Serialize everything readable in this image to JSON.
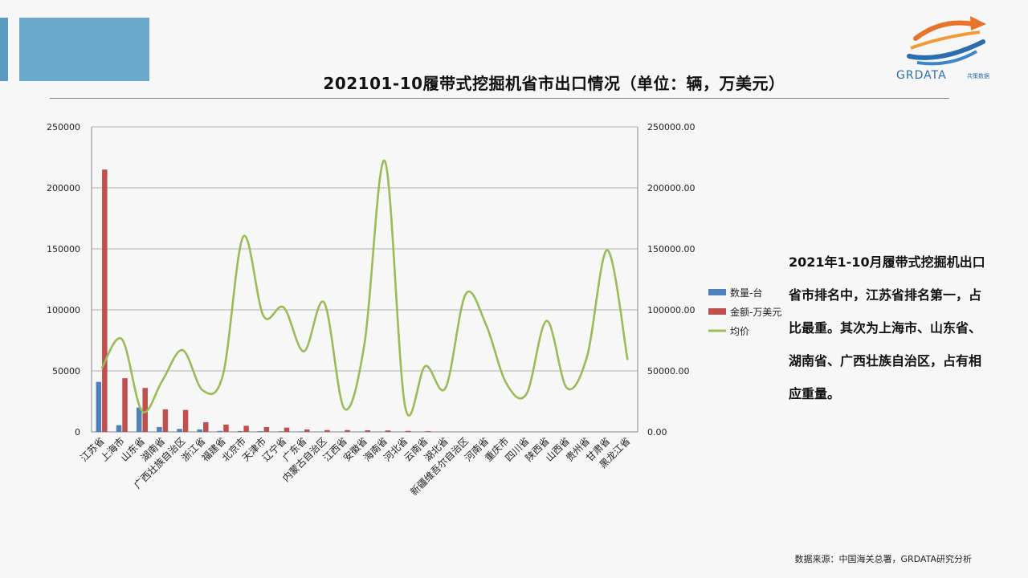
{
  "theme": {
    "accent": "#6aa9cc",
    "accent_dark": "#5b9bc2",
    "bar_qty": "#4f81bd",
    "bar_amt": "#c0504d",
    "line_avg": "#9bbb59",
    "grid": "#9a9a9a"
  },
  "header": {
    "title": "202101-10履带式挖掘机省市出口情况（单位：辆，万美元）"
  },
  "logo": {
    "text": "GRDATA",
    "sub_text": "共策数据",
    "icon": "globe-swoosh-icon"
  },
  "summary": {
    "text": "2021年1-10月履带式挖掘机出口省市排名中，江苏省排名第一，占比最重。其次为上海市、山东省、湖南省、广西壮族自治区，占有相应重量。"
  },
  "footer": {
    "source": "数据来源：中国海关总署，GRDATA研究分析"
  },
  "chart_data": {
    "type": "bar",
    "categories": [
      "江苏省",
      "上海市",
      "山东省",
      "湖南省",
      "广西壮族自治区",
      "浙江省",
      "福建省",
      "北京市",
      "天津市",
      "辽宁省",
      "广东省",
      "内蒙古自治区",
      "江西省",
      "安徽省",
      "海南省",
      "河北省",
      "云南省",
      "湖北省",
      "新疆维吾尔自治区",
      "河南省",
      "重庆市",
      "四川省",
      "陕西省",
      "山西省",
      "贵州省",
      "甘肃省",
      "黑龙江省"
    ],
    "series": [
      {
        "name": "数量-台",
        "axis": "left",
        "type": "bar",
        "values": [
          41000,
          5500,
          20000,
          4000,
          2500,
          2000,
          800,
          700,
          600,
          500,
          400,
          300,
          300,
          250,
          200,
          150,
          120,
          100,
          90,
          80,
          60,
          50,
          40,
          30,
          20,
          10,
          5
        ]
      },
      {
        "name": "金额-万美元",
        "axis": "left",
        "type": "bar",
        "values": [
          215000,
          44000,
          36000,
          18500,
          18000,
          8000,
          6000,
          5000,
          4000,
          3500,
          2000,
          1500,
          1500,
          1300,
          1200,
          800,
          600,
          300,
          250,
          200,
          150,
          100,
          80,
          60,
          40,
          30,
          20
        ]
      },
      {
        "name": "均价",
        "axis": "right",
        "type": "line",
        "values": [
          52000,
          76000,
          17000,
          42000,
          67000,
          34000,
          47000,
          160000,
          95000,
          102000,
          66000,
          106000,
          19000,
          73000,
          222000,
          21000,
          54000,
          36000,
          113000,
          88000,
          40000,
          31000,
          91000,
          36000,
          62000,
          149000,
          59000
        ]
      }
    ],
    "y_left": {
      "min": 0,
      "max": 250000,
      "ticks": [
        "0",
        "50000",
        "100000",
        "150000",
        "200000",
        "250000"
      ]
    },
    "y_right": {
      "min": 0,
      "max": 250000,
      "ticks": [
        "0.00",
        "50000.00",
        "100000.00",
        "150000.00",
        "200000.00",
        "250000.00"
      ]
    },
    "grid": true,
    "legend_position": "right"
  }
}
